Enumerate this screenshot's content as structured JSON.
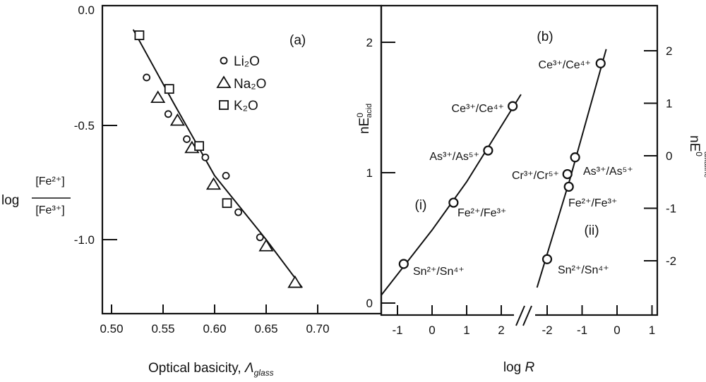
{
  "chart_data": [
    {
      "type": "scatter",
      "panel_label": "(a)",
      "xlabel": "Optical basicity, ",
      "xlabel_symbol": "Λ",
      "xlabel_sub": "glass",
      "ylabel_prefix": "log",
      "ylabel_numerator": "[Fe²⁺]",
      "ylabel_denominator": "[Fe³⁺]",
      "xlim": [
        0.49,
        0.74
      ],
      "ylim": [
        -1.32,
        0.0
      ],
      "xticks": [
        0.5,
        0.55,
        0.6,
        0.65,
        0.7
      ],
      "xtick_labels": [
        "0.50",
        "0.55",
        "0.60",
        "0.65",
        "0.70"
      ],
      "yticks": [
        0.0,
        -0.5,
        -1.0
      ],
      "ytick_labels": [
        "0.0",
        "-0.5",
        "-1.0"
      ],
      "legend_placement": "top-right",
      "series": [
        {
          "name": "Li₂O",
          "marker": "circle",
          "points": [
            [
              0.534,
              -0.29
            ],
            [
              0.555,
              -0.45
            ],
            [
              0.573,
              -0.56
            ],
            [
              0.591,
              -0.64
            ],
            [
              0.611,
              -0.72
            ],
            [
              0.623,
              -0.88
            ],
            [
              0.644,
              -0.99
            ]
          ]
        },
        {
          "name": "Na₂O",
          "marker": "triangle",
          "points": [
            [
              0.545,
              -0.38
            ],
            [
              0.564,
              -0.48
            ],
            [
              0.578,
              -0.6
            ],
            [
              0.599,
              -0.76
            ],
            [
              0.65,
              -1.03
            ],
            [
              0.678,
              -1.19
            ]
          ]
        },
        {
          "name": "K₂O",
          "marker": "square",
          "points": [
            [
              0.527,
              -0.105
            ],
            [
              0.556,
              -0.34
            ],
            [
              0.585,
              -0.59
            ],
            [
              0.612,
              -0.84
            ]
          ]
        }
      ],
      "fit_line": [
        [
          0.521,
          -0.08
        ],
        [
          0.56,
          -0.4
        ],
        [
          0.6,
          -0.72
        ],
        [
          0.65,
          -1.0
        ],
        [
          0.685,
          -1.21
        ]
      ]
    },
    {
      "type": "line",
      "panel_label": "(b)",
      "xlabel": "log ",
      "xlabel_italic": "R",
      "ylabel_left": "nE",
      "ylabel_left_sup": "0",
      "ylabel_left_sub": "acid",
      "ylabel_right": "nE",
      "ylabel_right_sup": "0",
      "ylabel_right_sub": "alkaline",
      "axis_break": "//",
      "left_segment": {
        "xlim": [
          -1.5,
          2.6
        ],
        "xticks": [
          -1,
          0,
          1,
          2
        ],
        "xtick_labels": [
          "-1",
          "0",
          "1",
          "2"
        ]
      },
      "right_segment": {
        "xlim": [
          -2.5,
          1.3
        ],
        "xticks": [
          -2,
          -1,
          0,
          1
        ],
        "xtick_labels": [
          "-2",
          "-1",
          "0",
          "1"
        ]
      },
      "ylim_left": [
        -0.1,
        2.25
      ],
      "yticks_left": [
        0,
        1,
        2
      ],
      "ytick_labels_left": [
        "0",
        "1",
        "2"
      ],
      "ylim_right": [
        -2.9,
        2.9
      ],
      "yticks_right": [
        2,
        1,
        0,
        -1,
        -2
      ],
      "ytick_labels_right": [
        "2",
        "1",
        "0",
        "-1",
        "-2"
      ],
      "series": [
        {
          "name": "(i)",
          "axis": "left",
          "points": [
            {
              "label": "Sn²⁺/Sn⁴⁺",
              "x": -0.82,
              "y": 0.3
            },
            {
              "label": "Fe²⁺/Fe³⁺",
              "x": 0.62,
              "y": 0.77
            },
            {
              "label": "As³⁺/As⁵⁺",
              "x": 1.62,
              "y": 1.17
            },
            {
              "label": "Ce³⁺/Ce⁴⁺",
              "x": 2.33,
              "y": 1.51
            }
          ],
          "line": [
            [
              -1.47,
              0.06
            ],
            [
              0.0,
              0.56
            ],
            [
              1.0,
              0.93
            ],
            [
              2.57,
              1.6
            ]
          ]
        },
        {
          "name": "(ii)",
          "axis": "right",
          "points": [
            {
              "label": "Ce³⁺/Ce⁴⁺",
              "x": -0.47,
              "y": 1.76
            },
            {
              "label": "As³⁺/As⁵⁺",
              "x": -1.2,
              "y": -0.03
            },
            {
              "label": "Cr³⁺/Cr⁵⁺",
              "x": -1.42,
              "y": -0.35
            },
            {
              "label": "Fe²⁺/Fe³⁺",
              "x": -1.38,
              "y": -0.59
            },
            {
              "label": "Sn²⁺/Sn⁴⁺",
              "x": -2.0,
              "y": -1.97
            }
          ],
          "line": [
            [
              -2.29,
              -2.51
            ],
            [
              -1.35,
              -0.45
            ],
            [
              -0.31,
              2.03
            ]
          ]
        }
      ]
    }
  ]
}
